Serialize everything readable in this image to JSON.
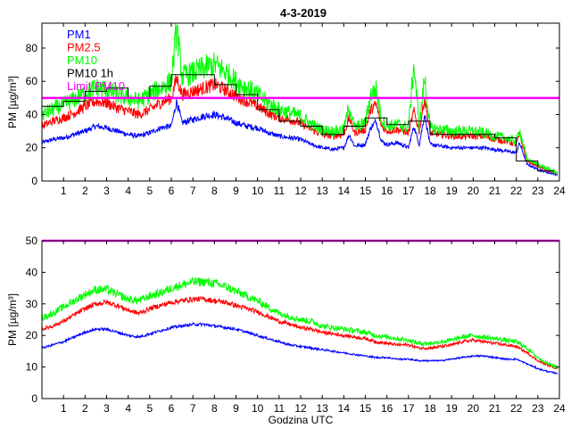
{
  "title": "4-3-2019",
  "colors": {
    "pm1": "#0000ff",
    "pm25": "#ff0000",
    "pm10": "#00ff00",
    "pm10_1h": "#000000",
    "limit": "#ff00ff"
  },
  "chart_data": [
    {
      "type": "line",
      "name": "top-panel",
      "title": "4-3-2019",
      "xlabel": "",
      "ylabel": "PM [µg/m³]",
      "xlim": [
        0,
        24
      ],
      "ylim": [
        0,
        95
      ],
      "xticks": [
        "1",
        "2",
        "3",
        "4",
        "5",
        "6",
        "7",
        "8",
        "9",
        "10",
        "11",
        "12",
        "13",
        "14",
        "15",
        "16",
        "17",
        "18",
        "19",
        "20",
        "21",
        "22",
        "23",
        "24"
      ],
      "yticks": [
        "0",
        "20",
        "40",
        "60",
        "80"
      ],
      "legend_position": "top-left",
      "legend": [
        "PM1",
        "PM2.5",
        "PM10",
        "PM10 1h",
        "Limit PM10"
      ],
      "series": [
        {
          "name": "PM1",
          "color": "#0000ff",
          "x": [
            0,
            0.5,
            1,
            1.5,
            2,
            2.5,
            3,
            3.5,
            4,
            4.5,
            5,
            5.5,
            6,
            6.25,
            6.5,
            7,
            7.5,
            8,
            8.5,
            9,
            9.5,
            10,
            10.5,
            11,
            11.5,
            12,
            12.5,
            13,
            13.5,
            14,
            14.25,
            14.5,
            15,
            15.25,
            15.5,
            15.75,
            16,
            16.5,
            17,
            17.25,
            17.5,
            17.75,
            18,
            18.5,
            19,
            19.5,
            20,
            20.5,
            21,
            21.5,
            22,
            22.15,
            22.5,
            23,
            23.5,
            23.9
          ],
          "y": [
            23,
            25,
            26,
            28,
            30,
            33,
            32,
            30,
            28,
            27,
            29,
            32,
            33,
            48,
            35,
            37,
            39,
            40,
            38,
            35,
            33,
            32,
            29,
            27,
            26,
            25,
            22,
            20,
            19,
            20,
            28,
            21,
            22,
            32,
            36,
            24,
            22,
            23,
            20,
            33,
            22,
            40,
            22,
            21,
            20,
            20,
            20,
            20,
            19,
            18,
            17,
            23,
            10,
            7,
            5,
            4
          ]
        },
        {
          "name": "PM2.5",
          "color": "#ff0000",
          "x": [
            0,
            0.5,
            1,
            1.5,
            2,
            2.5,
            3,
            3.5,
            4,
            4.5,
            5,
            5.5,
            6,
            6.25,
            6.5,
            7,
            7.5,
            8,
            8.5,
            9,
            9.5,
            10,
            10.5,
            11,
            11.5,
            12,
            12.5,
            13,
            13.5,
            14,
            14.25,
            14.5,
            15,
            15.25,
            15.5,
            15.75,
            16,
            16.5,
            17,
            17.25,
            17.5,
            17.75,
            18,
            18.5,
            19,
            19.5,
            20,
            20.5,
            21,
            21.5,
            22,
            22.15,
            22.5,
            23,
            23.5,
            23.9
          ],
          "y": [
            33,
            36,
            38,
            41,
            45,
            48,
            47,
            44,
            42,
            40,
            43,
            47,
            50,
            62,
            52,
            54,
            56,
            58,
            55,
            51,
            48,
            45,
            41,
            38,
            37,
            35,
            31,
            28,
            27,
            28,
            38,
            29,
            31,
            43,
            46,
            33,
            30,
            31,
            29,
            42,
            30,
            50,
            29,
            28,
            27,
            27,
            27,
            27,
            25,
            24,
            22,
            28,
            12,
            9,
            6,
            5
          ]
        },
        {
          "name": "PM10",
          "color": "#00ff00",
          "x": [
            0,
            0.5,
            1,
            1.5,
            2,
            2.5,
            3,
            3.5,
            4,
            4.5,
            5,
            5.5,
            6,
            6.25,
            6.5,
            7,
            7.5,
            8,
            8.5,
            9,
            9.5,
            10,
            10.5,
            11,
            11.5,
            12,
            12.5,
            13,
            13.5,
            14,
            14.25,
            14.5,
            15,
            15.25,
            15.5,
            15.75,
            16,
            16.5,
            17,
            17.25,
            17.5,
            17.75,
            18,
            18.5,
            19,
            19.5,
            20,
            20.5,
            21,
            21.5,
            22,
            22.15,
            22.5,
            23,
            23.5,
            23.9
          ],
          "y": [
            40,
            43,
            46,
            49,
            53,
            56,
            55,
            52,
            50,
            48,
            52,
            56,
            60,
            92,
            63,
            65,
            68,
            70,
            66,
            60,
            56,
            52,
            47,
            43,
            41,
            39,
            34,
            31,
            30,
            31,
            45,
            32,
            35,
            52,
            55,
            37,
            33,
            34,
            32,
            70,
            33,
            62,
            32,
            31,
            30,
            30,
            30,
            29,
            27,
            26,
            24,
            31,
            13,
            10,
            7,
            5
          ]
        },
        {
          "name": "PM10 1h",
          "color": "#000000",
          "step": true,
          "x": [
            0,
            1,
            2,
            3,
            4,
            5,
            6,
            7,
            8,
            9,
            10,
            11,
            12,
            13,
            14,
            15,
            16,
            17,
            18,
            19,
            20,
            21,
            22,
            23
          ],
          "y": [
            45,
            48,
            54,
            56,
            50,
            57,
            64,
            64,
            58,
            52,
            43,
            36,
            33,
            28,
            33,
            38,
            34,
            36,
            28,
            28,
            28,
            26,
            12,
            6
          ]
        },
        {
          "name": "Limit PM10",
          "color": "#ff00ff",
          "x": [
            0,
            24
          ],
          "y": [
            50,
            50
          ]
        }
      ]
    },
    {
      "type": "line",
      "name": "bottom-panel",
      "title": "",
      "xlabel": "Godzina UTC",
      "ylabel": "PM [µg/m³]",
      "xlim": [
        0,
        24
      ],
      "ylim": [
        0,
        50
      ],
      "xticks": [
        "1",
        "2",
        "3",
        "4",
        "5",
        "6",
        "7",
        "8",
        "9",
        "10",
        "11",
        "12",
        "13",
        "14",
        "15",
        "16",
        "17",
        "18",
        "19",
        "20",
        "21",
        "22",
        "23",
        "24"
      ],
      "yticks": [
        "0",
        "10",
        "20",
        "30",
        "40",
        "50"
      ],
      "series": [
        {
          "name": "PM1",
          "color": "#0000ff",
          "x": [
            0,
            0.5,
            1,
            1.5,
            2,
            2.5,
            3,
            3.5,
            4,
            4.5,
            5,
            5.5,
            6,
            6.5,
            7,
            7.5,
            8,
            8.5,
            9,
            9.5,
            10,
            10.5,
            11,
            11.5,
            12,
            12.5,
            13,
            13.5,
            14,
            14.5,
            15,
            15.5,
            16,
            16.5,
            17,
            17.5,
            18,
            18.5,
            19,
            19.5,
            20,
            20.5,
            21,
            21.5,
            22,
            22.5,
            23,
            23.5,
            23.9
          ],
          "y": [
            16,
            17,
            18,
            19.5,
            21,
            22,
            22,
            21,
            20,
            19.5,
            20.5,
            21.5,
            22.5,
            23,
            23.5,
            23.5,
            23,
            22.5,
            22,
            21,
            20,
            19,
            18,
            17,
            16.5,
            16,
            15.5,
            15,
            14.5,
            14,
            13.5,
            13,
            13,
            12.5,
            12.5,
            12,
            12,
            12,
            12.5,
            13,
            13.5,
            13.5,
            13,
            12.5,
            12.5,
            11,
            9.5,
            8.5,
            8
          ]
        },
        {
          "name": "PM2.5",
          "color": "#ff0000",
          "x": [
            0,
            0.5,
            1,
            1.5,
            2,
            2.5,
            3,
            3.5,
            4,
            4.5,
            5,
            5.5,
            6,
            6.5,
            7,
            7.5,
            8,
            8.5,
            9,
            9.5,
            10,
            10.5,
            11,
            11.5,
            12,
            12.5,
            13,
            13.5,
            14,
            14.5,
            15,
            15.5,
            16,
            16.5,
            17,
            17.5,
            18,
            18.5,
            19,
            19.5,
            20,
            20.5,
            21,
            21.5,
            22,
            22.5,
            23,
            23.5,
            23.9
          ],
          "y": [
            22,
            23,
            24.5,
            26.5,
            28.5,
            30,
            30.5,
            29.5,
            28,
            27,
            28.5,
            29.5,
            30.5,
            31,
            31.5,
            31.5,
            31,
            30.5,
            29.5,
            28.5,
            27.5,
            26,
            24.5,
            23.5,
            22.5,
            22,
            21,
            20.5,
            20,
            19.5,
            19,
            18,
            17.5,
            17,
            17,
            16,
            16,
            16.5,
            17,
            18,
            18.5,
            18,
            17.5,
            17,
            16.5,
            14.5,
            12,
            10.5,
            9.5
          ]
        },
        {
          "name": "PM10",
          "color": "#00ff00",
          "x": [
            0,
            0.5,
            1,
            1.5,
            2,
            2.5,
            3,
            3.5,
            4,
            4.5,
            5,
            5.5,
            6,
            6.5,
            7,
            7.5,
            8,
            8.5,
            9,
            9.5,
            10,
            10.5,
            11,
            11.5,
            12,
            12.5,
            13,
            13.5,
            14,
            14.5,
            15,
            15.5,
            16,
            16.5,
            17,
            17.5,
            18,
            18.5,
            19,
            19.5,
            20,
            20.5,
            21,
            21.5,
            22,
            22.5,
            23,
            23.5,
            23.9
          ],
          "y": [
            25.5,
            27,
            29,
            31,
            33,
            34.5,
            34.5,
            33,
            31.5,
            31,
            32.5,
            33.5,
            35,
            36,
            37,
            37,
            36.5,
            35.5,
            34,
            32.5,
            31,
            29,
            27,
            26,
            25,
            24.5,
            23,
            22.5,
            22,
            21.5,
            21,
            20,
            19.5,
            19,
            18.5,
            17.5,
            17.5,
            18,
            18.5,
            19.5,
            20,
            19.5,
            19,
            18.5,
            18,
            16,
            13,
            11,
            10
          ]
        },
        {
          "name": "Limit PM10",
          "color": "#ff00ff",
          "x": [
            0,
            24
          ],
          "y": [
            50,
            50
          ]
        }
      ]
    }
  ]
}
